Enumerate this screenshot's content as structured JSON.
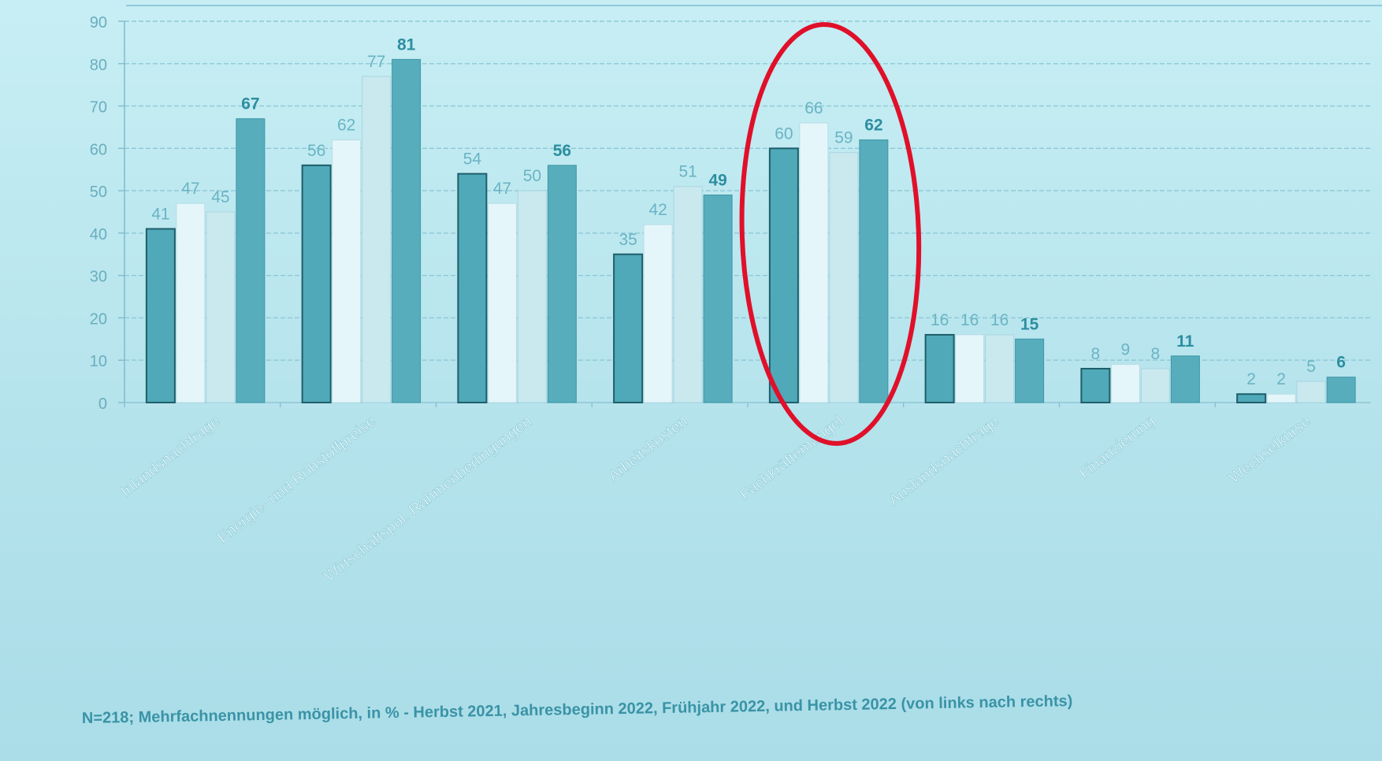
{
  "chart_data": {
    "type": "bar",
    "categories": [
      "Inlandsnachfrage",
      "Energie- und Rohstoffpreise",
      "Wirtschaftspol. Rahmenbedingungen",
      "Arbeitskosten",
      "Fachkräftemangel",
      "Auslandsnachfrage",
      "Finanzierung",
      "Wechselkurse"
    ],
    "series": [
      {
        "values": [
          41,
          56,
          54,
          35,
          60,
          16,
          8,
          2
        ]
      },
      {
        "values": [
          47,
          62,
          47,
          42,
          66,
          16,
          9,
          2
        ]
      },
      {
        "values": [
          45,
          77,
          50,
          51,
          59,
          16,
          8,
          5
        ]
      },
      {
        "values": [
          67,
          81,
          56,
          49,
          62,
          15,
          11,
          6
        ]
      }
    ],
    "ylim": [
      0,
      90
    ],
    "yticks": [
      0,
      10,
      20,
      30,
      40,
      50,
      60,
      70,
      80,
      90
    ],
    "grid": true,
    "highlighted_category": "Fachkräftemangel",
    "colors": {
      "series": [
        "#4fa9b8",
        "#e4f6fa",
        "#c9e9ef",
        "#57adbc"
      ],
      "label_light": "#6ab4c3",
      "label_bold": "#2d8ea0",
      "highlight": "#e0102a"
    }
  },
  "footnote": "N=218; Mehrfachnennungen möglich, in % - Herbst 2021, Jahresbeginn 2022, Frühjahr 2022,  und  Herbst 2022    (von links nach rechts)"
}
